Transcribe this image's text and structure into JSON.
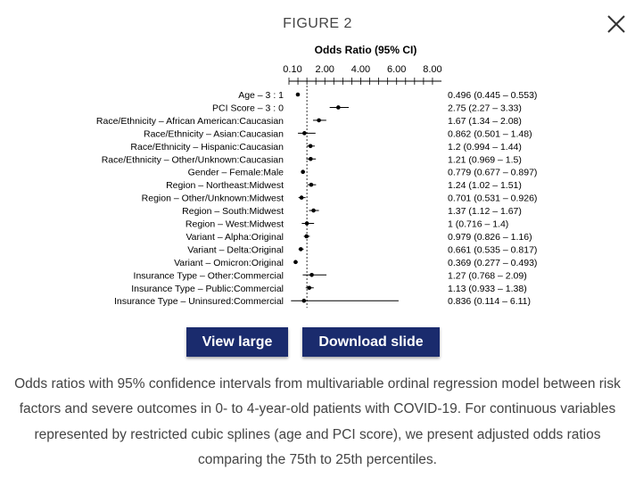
{
  "modal": {
    "title": "FIGURE 2",
    "close_icon": "close-icon",
    "view_large_label": "View large",
    "download_label": "Download slide",
    "caption": "Odds ratios with 95% confidence intervals from multivariable ordinal regression model between risk factors and severe outcomes in 0- to 4-year-old patients with COVID-19. For continuous variables represented by restricted cubic splines (age and PCI score), we present adjusted odds ratios comparing the 75th to 25th percentiles.",
    "button_color": "#1a2b6d"
  },
  "chart_data": {
    "type": "forest",
    "title": "Odds Ratio (95% CI)",
    "x_ticks": [
      "0.10",
      "2.00",
      "4.00",
      "6.00",
      "8.00"
    ],
    "x_tick_values": [
      0.1,
      2,
      4,
      6,
      8
    ],
    "xlim": [
      0,
      8.5
    ],
    "reference_line": 1,
    "rows": [
      {
        "label": "Age – 3 : 1",
        "or": 0.496,
        "lo": 0.445,
        "hi": 0.553,
        "text": "0.496 (0.445 – 0.553)"
      },
      {
        "label": "PCI Score – 3 : 0",
        "or": 2.75,
        "lo": 2.27,
        "hi": 3.33,
        "text": "2.75 (2.27 – 3.33)"
      },
      {
        "label": "Race/Ethnicity – African American:Caucasian",
        "or": 1.67,
        "lo": 1.34,
        "hi": 2.08,
        "text": "1.67 (1.34 – 2.08)"
      },
      {
        "label": "Race/Ethnicity – Asian:Caucasian",
        "or": 0.862,
        "lo": 0.501,
        "hi": 1.48,
        "text": "0.862 (0.501 – 1.48)"
      },
      {
        "label": "Race/Ethnicity – Hispanic:Caucasian",
        "or": 1.2,
        "lo": 0.994,
        "hi": 1.44,
        "text": "1.2 (0.994 – 1.44)"
      },
      {
        "label": "Race/Ethnicity – Other/Unknown:Caucasian",
        "or": 1.21,
        "lo": 0.969,
        "hi": 1.5,
        "text": "1.21 (0.969 – 1.5)"
      },
      {
        "label": "Gender – Female:Male",
        "or": 0.779,
        "lo": 0.677,
        "hi": 0.897,
        "text": "0.779 (0.677 – 0.897)"
      },
      {
        "label": "Region – Northeast:Midwest",
        "or": 1.24,
        "lo": 1.02,
        "hi": 1.51,
        "text": "1.24 (1.02 – 1.51)"
      },
      {
        "label": "Region – Other/Unknown:Midwest",
        "or": 0.701,
        "lo": 0.531,
        "hi": 0.926,
        "text": "0.701 (0.531 – 0.926)"
      },
      {
        "label": "Region – South:Midwest",
        "or": 1.37,
        "lo": 1.12,
        "hi": 1.67,
        "text": "1.37 (1.12 – 1.67)"
      },
      {
        "label": "Region – West:Midwest",
        "or": 1,
        "lo": 0.716,
        "hi": 1.4,
        "text": "1 (0.716 – 1.4)"
      },
      {
        "label": "Variant – Alpha:Original",
        "or": 0.979,
        "lo": 0.826,
        "hi": 1.16,
        "text": "0.979 (0.826 – 1.16)"
      },
      {
        "label": "Variant – Delta:Original",
        "or": 0.661,
        "lo": 0.535,
        "hi": 0.817,
        "text": "0.661 (0.535 – 0.817)"
      },
      {
        "label": "Variant – Omicron:Original",
        "or": 0.369,
        "lo": 0.277,
        "hi": 0.493,
        "text": "0.369 (0.277 – 0.493)"
      },
      {
        "label": "Insurance Type – Other:Commercial",
        "or": 1.27,
        "lo": 0.768,
        "hi": 2.09,
        "text": "1.27 (0.768 – 2.09)"
      },
      {
        "label": "Insurance Type – Public:Commercial",
        "or": 1.13,
        "lo": 0.933,
        "hi": 1.38,
        "text": "1.13 (0.933 – 1.38)"
      },
      {
        "label": "Insurance Type – Uninsured:Commercial",
        "or": 0.836,
        "lo": 0.114,
        "hi": 6.11,
        "text": "0.836 (0.114 – 6.11)"
      }
    ]
  }
}
